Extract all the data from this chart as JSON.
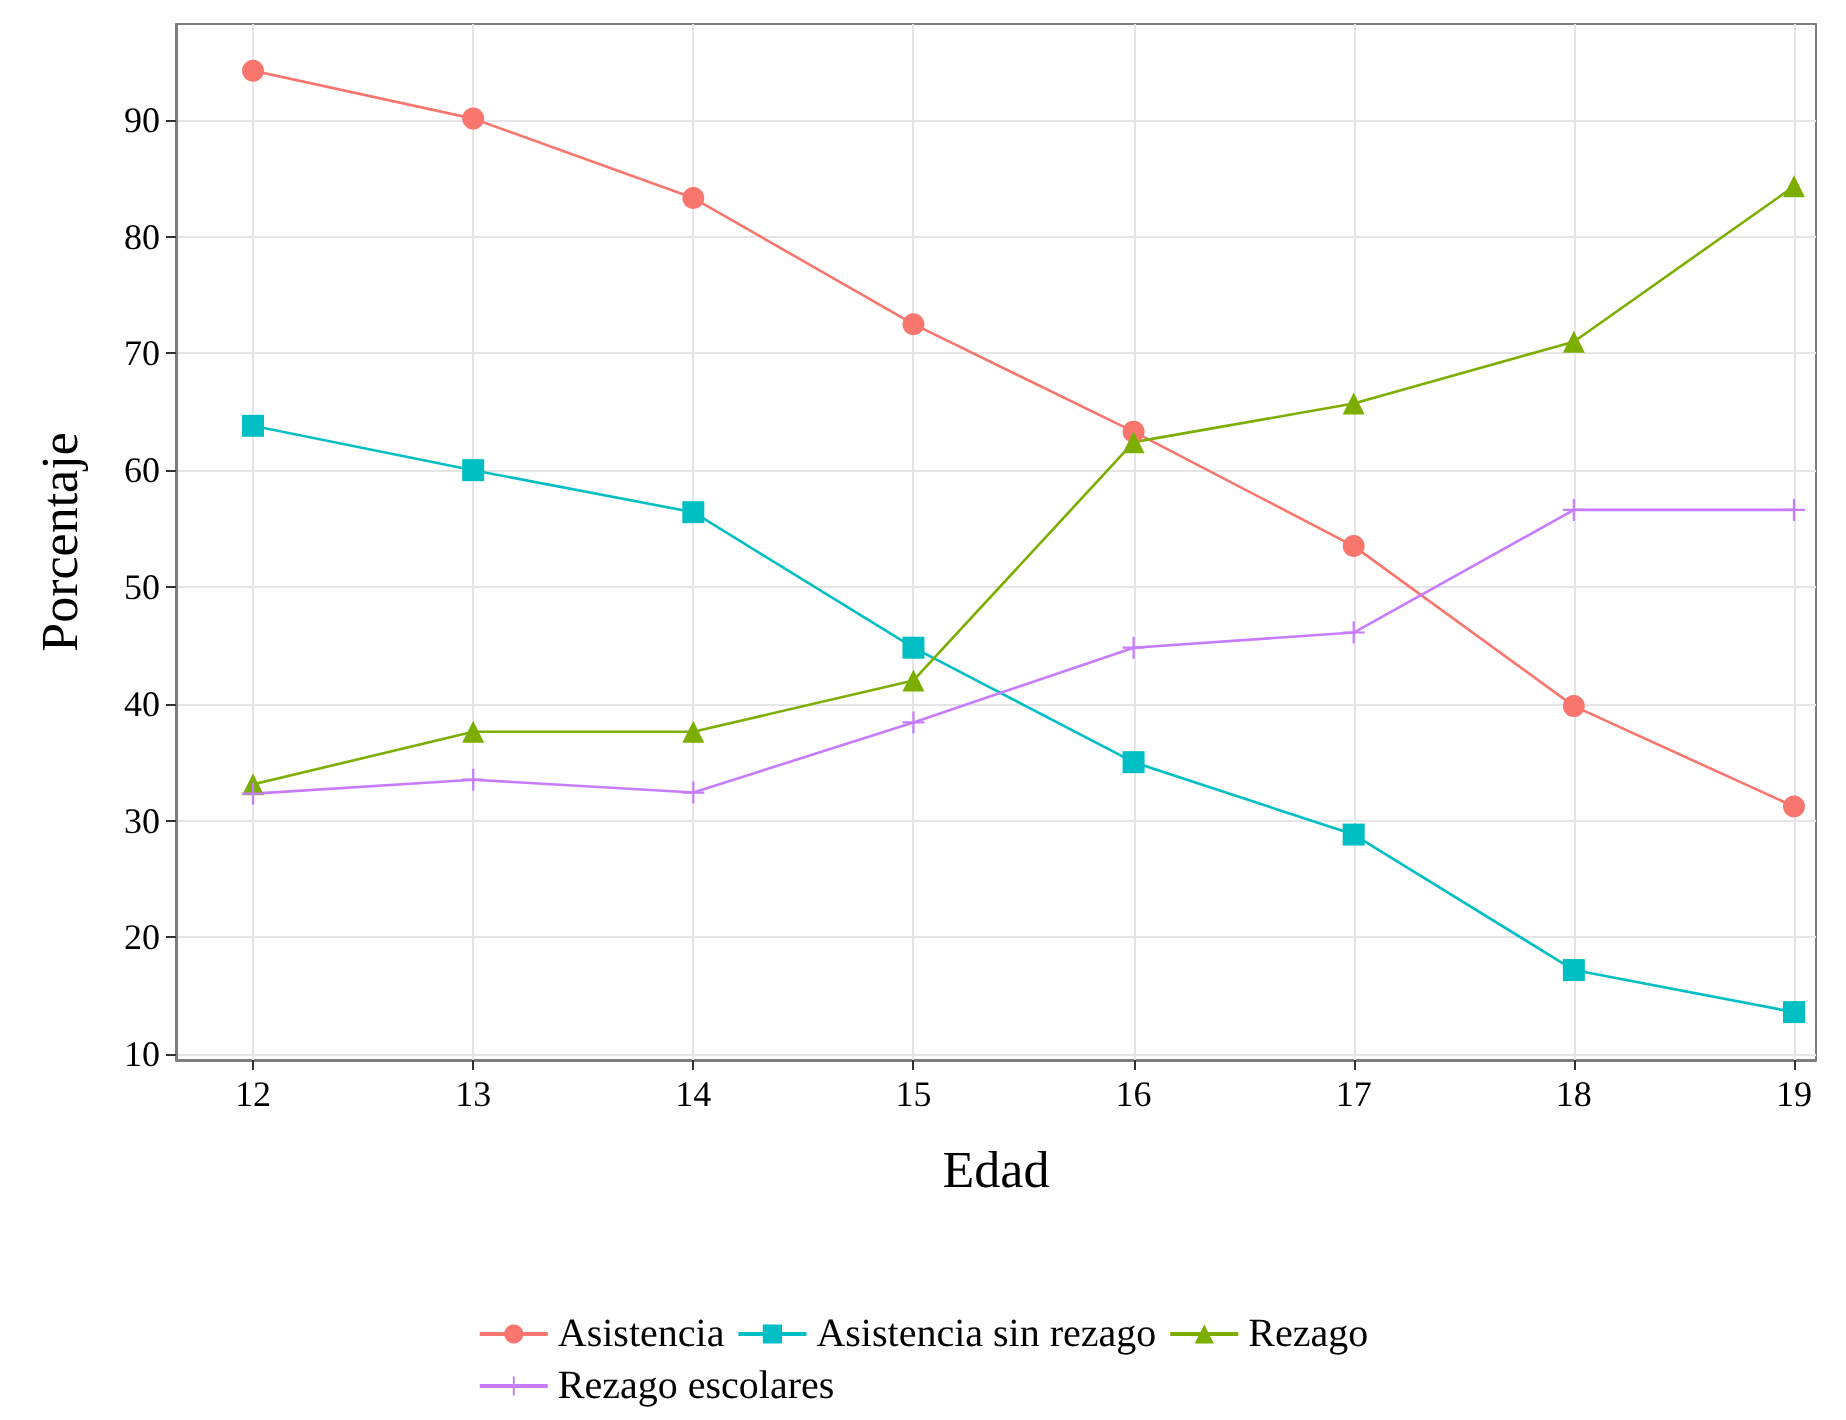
{
  "chart_data": {
    "type": "line",
    "xlabel": "Edad",
    "ylabel": "Porcentaje",
    "x": [
      12,
      13,
      14,
      15,
      16,
      17,
      18,
      19
    ],
    "xlim": [
      11.65,
      19.1
    ],
    "xticks": [
      12,
      13,
      14,
      15,
      16,
      17,
      18,
      19
    ],
    "ylim": [
      9.5,
      98.2
    ],
    "yticks": [
      10,
      20,
      30,
      40,
      50,
      60,
      70,
      80,
      90
    ],
    "grid": true,
    "legend": "bottom",
    "line_style": "solid",
    "series": [
      {
        "name": "Asistencia",
        "color": "#f8766d",
        "marker": "circle",
        "values": [
          94.2,
          90.1,
          83.3,
          72.5,
          63.3,
          53.5,
          39.8,
          31.2
        ]
      },
      {
        "name": "Asistencia sin rezago",
        "color": "#00bfc4",
        "marker": "square",
        "values": [
          63.8,
          60.0,
          56.4,
          44.8,
          35.0,
          28.8,
          17.2,
          13.6
        ]
      },
      {
        "name": "Rezago",
        "color": "#7cae00",
        "marker": "triangle",
        "values": [
          33.1,
          37.6,
          37.6,
          42.0,
          62.4,
          65.7,
          71.0,
          84.3
        ]
      },
      {
        "name": "Rezago escolares",
        "color": "#c77cff",
        "marker": "cross",
        "values": [
          32.3,
          33.5,
          32.4,
          38.4,
          44.8,
          46.1,
          56.6,
          56.6
        ]
      }
    ]
  }
}
